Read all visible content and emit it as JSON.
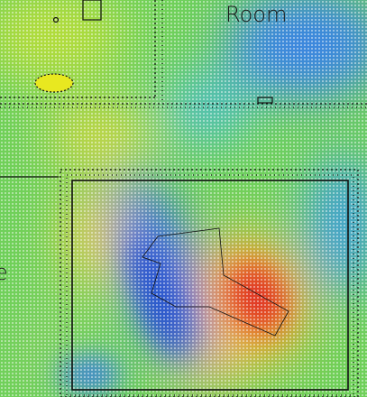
{
  "labels": {
    "room": "Room",
    "edge": "e"
  }
}
